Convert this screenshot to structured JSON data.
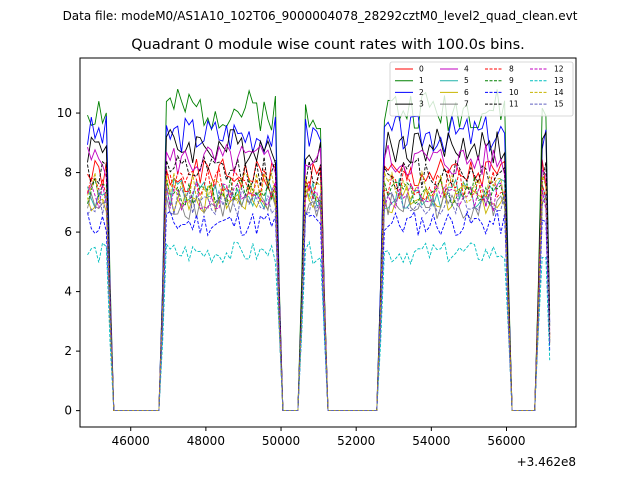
{
  "suptitle": "Data file: modeM0/AS1A10_102T06_9000004078_28292cztM0_level2_quad_clean.evt",
  "chart_data": {
    "type": "line",
    "title": "Quadrant 0 module wise count rates with 100.0s bins.",
    "xlabel": "",
    "ylabel": "",
    "x_offset_label": "+3.462e8",
    "xlim": [
      44650,
      57850
    ],
    "ylim": [
      -0.55,
      11.85
    ],
    "x_ticks": [
      46000,
      48000,
      50000,
      52000,
      54000,
      56000
    ],
    "x_tick_labels": [
      "46000",
      "48000",
      "50000",
      "52000",
      "54000",
      "56000"
    ],
    "y_ticks": [
      0,
      2,
      4,
      6,
      8,
      10
    ],
    "y_tick_labels": [
      "0",
      "2",
      "4",
      "6",
      "8",
      "10"
    ],
    "legend_position": "top-right",
    "bin_seconds": 100,
    "x_start": 44850,
    "bin_count": 124,
    "gaps": [
      [
        45550,
        46750
      ],
      [
        50050,
        50450
      ],
      [
        51250,
        52550
      ],
      [
        56150,
        56750
      ]
    ],
    "segment_end_value": 0.4,
    "series": [
      {
        "name": "0",
        "color": "#ff0000",
        "dash": "solid",
        "level": 7.9
      },
      {
        "name": "1",
        "color": "#008000",
        "dash": "solid",
        "level": 10.1
      },
      {
        "name": "2",
        "color": "#0000ff",
        "dash": "solid",
        "level": 9.3
      },
      {
        "name": "3",
        "color": "#000000",
        "dash": "solid",
        "level": 8.9
      },
      {
        "name": "4",
        "color": "#c000c0",
        "dash": "solid",
        "level": 8.4
      },
      {
        "name": "5",
        "color": "#20b2aa",
        "dash": "solid",
        "level": 7.3
      },
      {
        "name": "6",
        "color": "#c8b400",
        "dash": "solid",
        "level": 7.1
      },
      {
        "name": "7",
        "color": "#808080",
        "dash": "solid",
        "level": 6.9
      },
      {
        "name": "8",
        "color": "#ff0000",
        "dash": "dashed",
        "level": 7.6
      },
      {
        "name": "9",
        "color": "#008000",
        "dash": "dashed",
        "level": 7.4
      },
      {
        "name": "10",
        "color": "#0000ff",
        "dash": "dashed",
        "level": 6.3
      },
      {
        "name": "11",
        "color": "#000000",
        "dash": "dashed",
        "level": 8.0
      },
      {
        "name": "12",
        "color": "#c000c0",
        "dash": "dashed",
        "level": 7.2
      },
      {
        "name": "13",
        "color": "#00bfbf",
        "dash": "dashed",
        "level": 5.3
      },
      {
        "name": "14",
        "color": "#c8b400",
        "dash": "dashed",
        "level": 7.5
      },
      {
        "name": "15",
        "color": "#6060c0",
        "dash": "dashed",
        "level": 7.0
      }
    ]
  }
}
